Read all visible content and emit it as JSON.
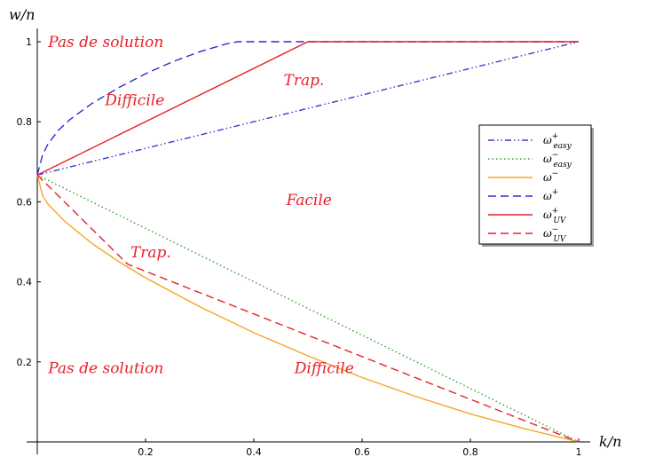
{
  "chart_data": {
    "type": "line",
    "xlabel": "k/n",
    "ylabel": "w/n",
    "xlim": [
      0,
      1
    ],
    "ylim": [
      0,
      1
    ],
    "x_ticks": [
      "0.2",
      "0.4",
      "0.6",
      "0.8",
      "1"
    ],
    "y_ticks": [
      "0.2",
      "0.4",
      "0.6",
      "0.8",
      "1"
    ],
    "grid": false,
    "legend_position": "right",
    "series": [
      {
        "name": "ω+easy",
        "base": "ω",
        "sup": "+",
        "sub": "easy",
        "color": "#3b3bd6",
        "dash": "dashdot",
        "x": [
          0,
          1
        ],
        "y": [
          0.667,
          1.0
        ]
      },
      {
        "name": "ω−easy",
        "base": "ω",
        "sup": "−",
        "sub": "easy",
        "color": "#2ca02c",
        "dash": "dotted",
        "x": [
          0,
          1
        ],
        "y": [
          0.667,
          0.0
        ]
      },
      {
        "name": "ω−",
        "base": "ω",
        "sup": "−",
        "sub": "",
        "color": "#f5a623",
        "dash": "solid",
        "x": [
          0,
          0.01,
          0.02,
          0.05,
          0.1,
          0.15,
          0.2,
          0.3,
          0.4,
          0.5,
          0.6,
          0.7,
          0.8,
          0.9,
          1.0
        ],
        "y": [
          0.667,
          0.615,
          0.594,
          0.552,
          0.497,
          0.451,
          0.41,
          0.338,
          0.273,
          0.215,
          0.161,
          0.113,
          0.07,
          0.033,
          0.0
        ]
      },
      {
        "name": "ω+",
        "base": "ω",
        "sup": "+",
        "sub": "",
        "color": "#2b2bd9",
        "dash": "dashed",
        "x": [
          0,
          0.01,
          0.02,
          0.04,
          0.06,
          0.1,
          0.15,
          0.2,
          0.25,
          0.3,
          0.35,
          0.37,
          0.5,
          1.0
        ],
        "y": [
          0.667,
          0.718,
          0.745,
          0.78,
          0.805,
          0.845,
          0.885,
          0.92,
          0.95,
          0.975,
          0.995,
          1.0,
          1.0,
          1.0
        ]
      },
      {
        "name": "ω+UV",
        "base": "ω",
        "sup": "+",
        "sub": "UV",
        "color": "#e8202a",
        "dash": "solid",
        "x": [
          0,
          0.5,
          1.0
        ],
        "y": [
          0.667,
          1.0,
          1.0
        ]
      },
      {
        "name": "ω−UV",
        "base": "ω",
        "sup": "−",
        "sub": "UV",
        "color": "#e8202a",
        "dash": "dashed",
        "x": [
          0,
          0.167,
          1.0
        ],
        "y": [
          0.667,
          0.444,
          0.0
        ]
      }
    ],
    "annotations": [
      {
        "text": "Pas de solution",
        "x": 0.02,
        "y": 1.0
      },
      {
        "text": "Difficile",
        "x": 0.125,
        "y": 0.855
      },
      {
        "text": "Trap.",
        "x": 0.455,
        "y": 0.905
      },
      {
        "text": "Facile",
        "x": 0.46,
        "y": 0.605
      },
      {
        "text": "Trap.",
        "x": 0.172,
        "y": 0.475
      },
      {
        "text": "Pas de solution",
        "x": 0.02,
        "y": 0.185
      },
      {
        "text": "Difficile",
        "x": 0.475,
        "y": 0.185
      }
    ]
  }
}
